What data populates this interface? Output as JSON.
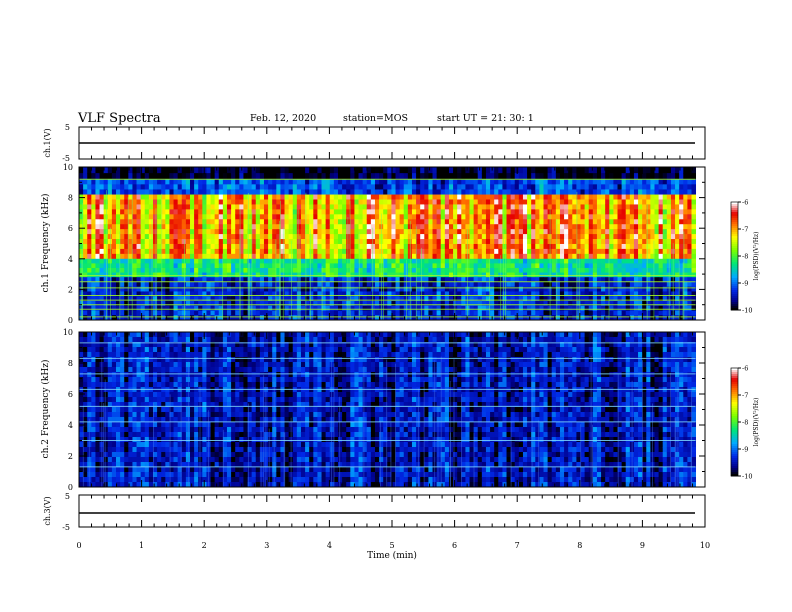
{
  "header": {
    "title": "VLF Spectra",
    "date": "Feb. 12, 2020",
    "station": "station=MOS",
    "start": "start UT =  21: 30: 1"
  },
  "colorbar": {
    "label": "log(PSD)(V²/Hz)",
    "ticks": [
      "-6",
      "-7",
      "-8",
      "-9",
      "-10"
    ],
    "colors": [
      "#ffffff",
      "#ff0000",
      "#ffff00",
      "#00ff00",
      "#00aaff",
      "#0000cc",
      "#000000"
    ]
  },
  "chart_data": [
    {
      "type": "line",
      "panel": "ch1-waveform",
      "ylabel": "ch.1(V)",
      "ylim": [
        -5,
        5
      ],
      "yticks": [
        "5",
        "-5"
      ],
      "x": [
        0,
        9.85
      ],
      "values": [
        0,
        0
      ]
    },
    {
      "type": "heatmap",
      "panel": "ch1-spectrogram",
      "ylabel": "ch.1 Frequency (kHz)",
      "ylim": [
        0,
        10
      ],
      "yticks": [
        "0",
        "2",
        "4",
        "6",
        "8",
        "10"
      ],
      "xlim": [
        0,
        10
      ],
      "data_end_min": 9.85,
      "zlim": [
        -10,
        -6
      ],
      "bands": [
        {
          "f_low": 9.2,
          "f_high": 10.0,
          "log_psd": -10
        },
        {
          "f_low": 8.2,
          "f_high": 9.2,
          "log_psd": -9.2
        },
        {
          "f_low": 4.0,
          "f_high": 8.2,
          "log_psd": -7.0
        },
        {
          "f_low": 2.8,
          "f_high": 4.0,
          "log_psd": -8.3
        },
        {
          "f_low": 0.0,
          "f_high": 2.8,
          "log_psd": -9.4
        }
      ],
      "tones_khz": [
        0.2,
        0.7,
        1.0,
        1.3,
        1.6,
        2.1,
        2.5,
        2.9,
        9.2
      ]
    },
    {
      "type": "heatmap",
      "panel": "ch2-spectrogram",
      "ylabel": "ch.2 Frequency (kHz)",
      "ylim": [
        0,
        10
      ],
      "yticks": [
        "0",
        "2",
        "4",
        "6",
        "8",
        "10"
      ],
      "xlim": [
        0,
        10
      ],
      "data_end_min": 9.85,
      "zlim": [
        -10,
        -6
      ],
      "bands": [
        {
          "f_low": 0.0,
          "f_high": 10.0,
          "log_psd": -9.5
        }
      ],
      "tones_khz": [
        1.3,
        3.0,
        4.2,
        5.2,
        6.3,
        7.3,
        8.3,
        9.3
      ]
    },
    {
      "type": "line",
      "panel": "ch3-waveform",
      "ylabel": "ch.3(V)",
      "ylim": [
        -5,
        5
      ],
      "yticks": [
        "5",
        "-5"
      ],
      "x": [
        0,
        9.85
      ],
      "values": [
        -1,
        -1
      ]
    }
  ],
  "xaxis": {
    "label": "Time (min)",
    "ticks": [
      "0",
      "1",
      "2",
      "3",
      "4",
      "5",
      "6",
      "7",
      "8",
      "9",
      "10"
    ],
    "xlim": [
      0,
      10
    ]
  }
}
